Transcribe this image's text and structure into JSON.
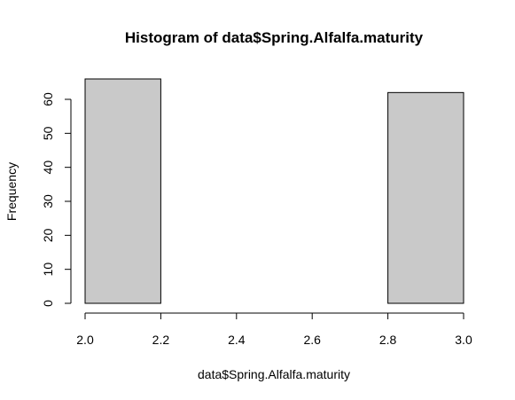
{
  "chart_data": {
    "type": "bar",
    "title": "Histogram of data$Spring.Alfalfa.maturity",
    "xlabel": "data$Spring.Alfalfa.maturity",
    "ylabel": "Frequency",
    "bins": [
      {
        "start": 2.0,
        "end": 2.2,
        "count": 66
      },
      {
        "start": 2.2,
        "end": 2.4,
        "count": 0
      },
      {
        "start": 2.4,
        "end": 2.6,
        "count": 0
      },
      {
        "start": 2.6,
        "end": 2.8,
        "count": 0
      },
      {
        "start": 2.8,
        "end": 3.0,
        "count": 62
      }
    ],
    "xlim": [
      2.0,
      3.0
    ],
    "ylim": [
      0,
      66
    ],
    "x_ticks": [
      "2.0",
      "2.2",
      "2.4",
      "2.6",
      "2.8",
      "3.0"
    ],
    "y_ticks": [
      "0",
      "10",
      "20",
      "30",
      "40",
      "50",
      "60"
    ],
    "bar_color": "#C9C9C9",
    "grid": false
  }
}
